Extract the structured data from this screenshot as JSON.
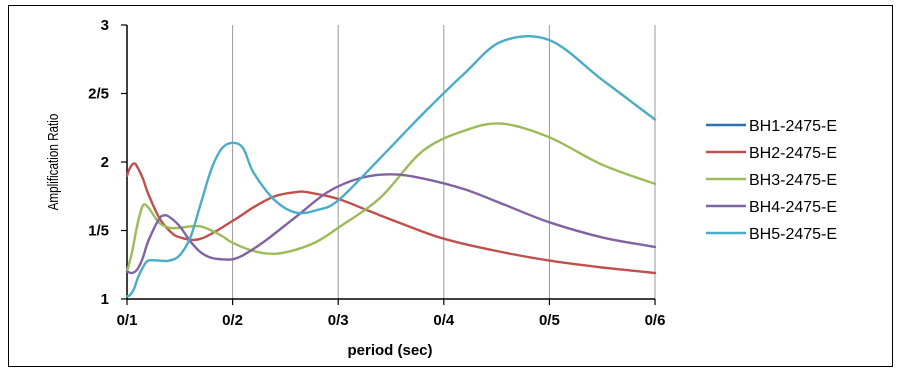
{
  "chart_data": {
    "type": "line",
    "title": "",
    "xlabel": "period (sec)",
    "ylabel": "Amplification Ratio",
    "xlim": [
      0.1,
      0.6
    ],
    "ylim": [
      1,
      3
    ],
    "x_ticks": [
      0.1,
      0.2,
      0.3,
      0.4,
      0.5,
      0.6
    ],
    "x_tick_labels": [
      "0/1",
      "0/2",
      "0/3",
      "0/4",
      "0/5",
      "0/6"
    ],
    "y_ticks": [
      1,
      1.5,
      2,
      2.5,
      3
    ],
    "y_tick_labels": [
      "1",
      "1/5",
      "2",
      "2/5",
      "3"
    ],
    "grid": "vertical",
    "legend_position": "right",
    "series": [
      {
        "name": "BH1-2475-E",
        "color": "#2e6fb0",
        "x": [],
        "y": []
      },
      {
        "name": "BH2-2475-E",
        "color": "#c0504d",
        "x": [
          0.1,
          0.103,
          0.107,
          0.11,
          0.115,
          0.12,
          0.13,
          0.14,
          0.15,
          0.17,
          0.2,
          0.22,
          0.24,
          0.26,
          0.27,
          0.3,
          0.33,
          0.36,
          0.4,
          0.45,
          0.5,
          0.55,
          0.6
        ],
        "y": [
          1.9,
          1.96,
          1.99,
          1.96,
          1.88,
          1.77,
          1.6,
          1.5,
          1.45,
          1.44,
          1.57,
          1.67,
          1.75,
          1.78,
          1.78,
          1.73,
          1.64,
          1.55,
          1.44,
          1.35,
          1.28,
          1.23,
          1.19
        ]
      },
      {
        "name": "BH3-2475-E",
        "color": "#9bbb59",
        "x": [
          0.1,
          0.105,
          0.11,
          0.115,
          0.12,
          0.13,
          0.14,
          0.15,
          0.16,
          0.17,
          0.18,
          0.19,
          0.2,
          0.22,
          0.24,
          0.26,
          0.28,
          0.3,
          0.34,
          0.38,
          0.42,
          0.455,
          0.5,
          0.55,
          0.6
        ],
        "y": [
          1.2,
          1.35,
          1.55,
          1.68,
          1.67,
          1.56,
          1.52,
          1.52,
          1.53,
          1.53,
          1.5,
          1.46,
          1.41,
          1.35,
          1.33,
          1.36,
          1.42,
          1.52,
          1.74,
          2.08,
          2.23,
          2.28,
          2.18,
          1.98,
          1.84
        ]
      },
      {
        "name": "BH4-2475-E",
        "color": "#8064a2",
        "x": [
          0.1,
          0.105,
          0.11,
          0.115,
          0.12,
          0.13,
          0.135,
          0.14,
          0.15,
          0.16,
          0.17,
          0.18,
          0.19,
          0.2,
          0.21,
          0.23,
          0.26,
          0.29,
          0.32,
          0.35,
          0.38,
          0.42,
          0.46,
          0.5,
          0.55,
          0.6
        ],
        "y": [
          1.2,
          1.19,
          1.22,
          1.3,
          1.42,
          1.58,
          1.61,
          1.6,
          1.53,
          1.42,
          1.34,
          1.3,
          1.29,
          1.29,
          1.32,
          1.42,
          1.6,
          1.78,
          1.88,
          1.91,
          1.88,
          1.8,
          1.68,
          1.56,
          1.45,
          1.38
        ]
      },
      {
        "name": "BH5-2475-E",
        "color": "#4bacc6",
        "x": [
          0.1,
          0.103,
          0.107,
          0.11,
          0.115,
          0.12,
          0.13,
          0.14,
          0.15,
          0.16,
          0.17,
          0.18,
          0.19,
          0.2,
          0.21,
          0.22,
          0.24,
          0.26,
          0.28,
          0.3,
          0.34,
          0.38,
          0.42,
          0.455,
          0.5,
          0.55,
          0.6
        ],
        "y": [
          1.02,
          1.03,
          1.08,
          1.15,
          1.23,
          1.28,
          1.28,
          1.28,
          1.32,
          1.45,
          1.7,
          1.95,
          2.1,
          2.14,
          2.1,
          1.92,
          1.72,
          1.63,
          1.65,
          1.72,
          2.03,
          2.35,
          2.65,
          2.88,
          2.89,
          2.6,
          2.31
        ]
      }
    ]
  }
}
